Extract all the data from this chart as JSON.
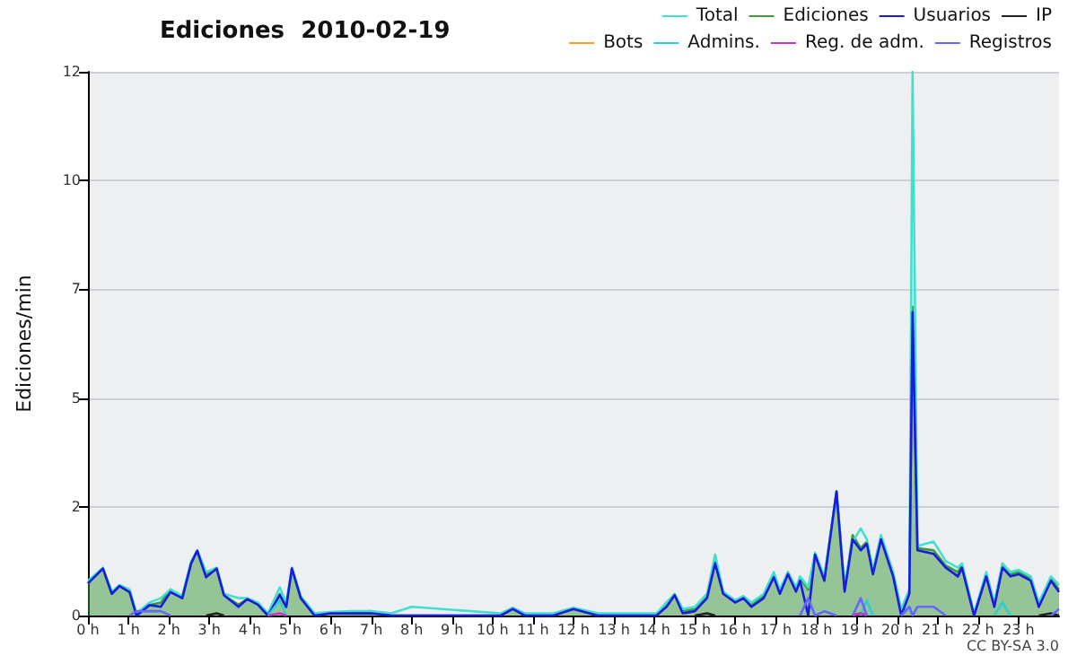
{
  "chart_data": {
    "type": "line",
    "title": "Ediciones  2010-02-19",
    "ylabel": "Ediciones/min",
    "annotations": [
      "CC BY-SA 3.0"
    ],
    "grid": "y",
    "legend": "top right",
    "marker": "none",
    "xlim": [
      0,
      24
    ],
    "xticks": [
      {
        "value": 0,
        "label": "0 h"
      },
      {
        "value": 1,
        "label": "1 h"
      },
      {
        "value": 2,
        "label": "2 h"
      },
      {
        "value": 3,
        "label": "3 h"
      },
      {
        "value": 4,
        "label": "4 h"
      },
      {
        "value": 5,
        "label": "5 h"
      },
      {
        "value": 6,
        "label": "6 h"
      },
      {
        "value": 7,
        "label": "7 h"
      },
      {
        "value": 8,
        "label": "8 h"
      },
      {
        "value": 9,
        "label": "9 h"
      },
      {
        "value": 10,
        "label": "10 h"
      },
      {
        "value": 11,
        "label": "11 h"
      },
      {
        "value": 12,
        "label": "12 h"
      },
      {
        "value": 13,
        "label": "13 h"
      },
      {
        "value": 14,
        "label": "14 h"
      },
      {
        "value": 15,
        "label": "15 h"
      },
      {
        "value": 16,
        "label": "16 h"
      },
      {
        "value": 17,
        "label": "17 h"
      },
      {
        "value": 18,
        "label": "18 h"
      },
      {
        "value": 19,
        "label": "19 h"
      },
      {
        "value": 20,
        "label": "20 h"
      },
      {
        "value": 21,
        "label": "21 h"
      },
      {
        "value": 22,
        "label": "22 h"
      },
      {
        "value": 23,
        "label": "23 h"
      }
    ],
    "ylim": [
      0,
      12.5
    ],
    "yticks": [
      0,
      {
        "value": 2.5,
        "label": "2"
      },
      {
        "value": 5,
        "label": "5"
      },
      {
        "value": 7.5,
        "label": "7"
      },
      {
        "value": 10,
        "label": "10"
      },
      {
        "value": 12.5,
        "label": "12"
      }
    ],
    "x": [
      0,
      0.37,
      0.59,
      0.78,
      1.03,
      1.2,
      1.52,
      1.8,
      2.04,
      2.33,
      2.55,
      2.7,
      2.92,
      3.18,
      3.36,
      3.72,
      3.94,
      4.2,
      4.45,
      4.74,
      4.9,
      5.04,
      5.26,
      5.6,
      6,
      6.5,
      7,
      7.5,
      8,
      10.2,
      10.5,
      10.8,
      11.5,
      12,
      12.6,
      13,
      14.05,
      14.3,
      14.5,
      14.7,
      15,
      15.3,
      15.5,
      15.7,
      16,
      16.2,
      16.4,
      16.7,
      16.95,
      17.1,
      17.3,
      17.5,
      17.6,
      17.8,
      17.97,
      18.2,
      18.5,
      18.7,
      18.9,
      19.1,
      19.25,
      19.4,
      19.6,
      19.9,
      20.1,
      20.3,
      20.38,
      20.5,
      20.9,
      21.2,
      21.5,
      21.6,
      21.9,
      22.2,
      22.4,
      22.6,
      22.8,
      23,
      23.3,
      23.5,
      23.8,
      24
    ],
    "series": [
      {
        "name": "Total",
        "color": "#40e0d0",
        "values": [
          0.8,
          1.1,
          0.55,
          0.7,
          0.6,
          0.05,
          0.3,
          0.4,
          0.6,
          0.45,
          1.25,
          1.5,
          1.0,
          1.1,
          0.5,
          0.4,
          0.4,
          0.3,
          0.05,
          0.65,
          0.3,
          1.1,
          0.45,
          0.05,
          0.08,
          0.1,
          0.1,
          0.05,
          0.2,
          0.05,
          0.18,
          0.05,
          0.05,
          0.18,
          0.05,
          0.05,
          0.05,
          0.3,
          0.5,
          0.15,
          0.2,
          0.5,
          1.4,
          0.55,
          0.35,
          0.45,
          0.3,
          0.5,
          1.0,
          0.6,
          1.0,
          0.65,
          0.9,
          0.65,
          1.45,
          0.9,
          2.85,
          0.7,
          1.7,
          2.0,
          1.75,
          1.05,
          1.85,
          1.0,
          0.15,
          0.6,
          12.5,
          1.6,
          1.7,
          1.25,
          1.1,
          1.2,
          0.05,
          1.0,
          0.3,
          1.2,
          1.0,
          1.05,
          0.9,
          0.3,
          0.9,
          0.7
        ]
      },
      {
        "name": "Ediciones",
        "type": "area",
        "color": "#3c9c3c",
        "values": [
          0.74,
          1.08,
          0.5,
          0.68,
          0.54,
          0,
          0.24,
          0.3,
          0.6,
          0.4,
          1.2,
          1.49,
          0.95,
          1.08,
          0.47,
          0.25,
          0.38,
          0.25,
          0,
          0.5,
          0.2,
          1.08,
          0.4,
          0,
          0.05,
          0.08,
          0.1,
          0,
          0,
          0,
          0.15,
          0,
          0,
          0.15,
          0,
          0,
          0,
          0.3,
          0.47,
          0.1,
          0.15,
          0.45,
          1.25,
          0.5,
          0.3,
          0.4,
          0.25,
          0.45,
          0.95,
          0.55,
          1.0,
          0.6,
          0.85,
          0.6,
          1.4,
          0.85,
          2.85,
          0.6,
          1.85,
          1.55,
          1.7,
          1.0,
          1.8,
          0.95,
          0.1,
          0.5,
          7.1,
          1.55,
          1.5,
          1.15,
          1.0,
          1.15,
          0,
          0.95,
          0.25,
          1.15,
          0.95,
          1.0,
          0.85,
          0.25,
          0.85,
          0.6
        ]
      },
      {
        "name": "Usuarios",
        "color": "#1a1ae0",
        "values": [
          0.74,
          1.08,
          0.5,
          0.68,
          0.54,
          0,
          0.24,
          0.2,
          0.54,
          0.4,
          1.2,
          1.49,
          0.88,
          1.08,
          0.47,
          0.2,
          0.38,
          0.25,
          0,
          0.47,
          0.2,
          1.08,
          0.4,
          0,
          0.05,
          0.05,
          0.05,
          0,
          0,
          0,
          0.15,
          0,
          0,
          0.15,
          0,
          0,
          0,
          0.2,
          0.47,
          0.05,
          0.1,
          0.4,
          1.2,
          0.5,
          0.3,
          0.4,
          0.2,
          0.4,
          0.88,
          0.5,
          0.95,
          0.55,
          0.8,
          0,
          1.4,
          0.8,
          2.85,
          0.55,
          1.75,
          1.5,
          1.65,
          0.95,
          1.75,
          0.9,
          0,
          0.5,
          6.97,
          1.5,
          1.42,
          1.1,
          0.9,
          1.1,
          0,
          0.9,
          0.2,
          1.1,
          0.9,
          0.95,
          0.8,
          0.2,
          0.8,
          0.54
        ]
      },
      {
        "name": "IP",
        "color": "#222222",
        "values": [
          null,
          null,
          null,
          null,
          null,
          null,
          null,
          null,
          null,
          null,
          null,
          null,
          0,
          0.05,
          0,
          null,
          null,
          null,
          null,
          null,
          null,
          null,
          null,
          null,
          null,
          null,
          null,
          null,
          null,
          null,
          null,
          null,
          null,
          null,
          null,
          null,
          null,
          null,
          null,
          null,
          0,
          0.05,
          0,
          null,
          null,
          null,
          null,
          null,
          null,
          null,
          null,
          null,
          null,
          null,
          null,
          null,
          null,
          null,
          0,
          0.05,
          0,
          null,
          null,
          null,
          null,
          null,
          null,
          null,
          null,
          null,
          null,
          null,
          null,
          null,
          null,
          null,
          null,
          null,
          null,
          0,
          0.05,
          0
        ]
      },
      {
        "name": "Bots",
        "color": "#ff9933",
        "values": [
          null,
          null,
          null,
          null,
          null,
          null,
          null,
          null,
          null,
          null,
          null,
          null,
          null,
          null,
          null,
          null,
          null,
          null,
          null,
          null,
          null,
          null,
          null,
          null,
          null,
          null,
          null,
          null,
          null,
          null,
          null,
          null,
          null,
          null,
          null,
          null,
          null,
          null,
          null,
          null,
          null,
          null,
          null,
          null,
          null,
          null,
          null,
          null,
          null,
          null,
          null,
          null,
          null,
          null,
          null,
          null,
          null,
          null,
          null,
          null,
          null,
          null,
          null,
          null,
          null,
          null,
          null,
          null,
          null,
          null,
          null,
          null,
          null,
          null,
          null,
          null,
          null,
          null,
          null,
          null,
          null,
          null
        ]
      },
      {
        "name": "Admins.",
        "color": "#33cccc",
        "values": [
          null,
          null,
          null,
          null,
          null,
          null,
          null,
          null,
          null,
          null,
          null,
          null,
          null,
          null,
          null,
          null,
          null,
          null,
          0,
          0.35,
          0,
          null,
          null,
          null,
          null,
          null,
          null,
          null,
          null,
          null,
          null,
          null,
          null,
          null,
          null,
          null,
          null,
          null,
          null,
          null,
          null,
          null,
          null,
          null,
          null,
          null,
          null,
          null,
          null,
          null,
          null,
          null,
          null,
          null,
          null,
          null,
          null,
          null,
          null,
          0,
          0.35,
          0,
          null,
          null,
          0,
          0.2,
          0,
          null,
          null,
          null,
          null,
          null,
          null,
          null,
          0,
          0.3,
          0,
          null,
          null,
          null,
          null,
          null
        ]
      },
      {
        "name": "Reg. de adm.",
        "color": "#cc33cc",
        "values": [
          null,
          null,
          null,
          null,
          null,
          null,
          null,
          null,
          null,
          null,
          null,
          null,
          null,
          null,
          null,
          null,
          null,
          null,
          0,
          0.05,
          0,
          null,
          null,
          null,
          null,
          null,
          null,
          null,
          null,
          null,
          null,
          null,
          null,
          null,
          null,
          null,
          null,
          null,
          null,
          null,
          null,
          null,
          null,
          null,
          null,
          null,
          null,
          null,
          null,
          null,
          null,
          null,
          null,
          null,
          null,
          null,
          null,
          null,
          0,
          0.05,
          0,
          null,
          null,
          null,
          null,
          null,
          null,
          null,
          null,
          null,
          null,
          null,
          null,
          null,
          null,
          null,
          null,
          null,
          null,
          null,
          null,
          null
        ]
      },
      {
        "name": "Registros",
        "color": "#6666ff",
        "values": [
          null,
          null,
          null,
          null,
          0,
          0.1,
          0.1,
          0.1,
          0,
          null,
          null,
          null,
          null,
          null,
          null,
          null,
          null,
          null,
          null,
          null,
          null,
          null,
          null,
          null,
          null,
          null,
          null,
          null,
          null,
          null,
          null,
          null,
          null,
          null,
          null,
          null,
          null,
          null,
          null,
          null,
          null,
          null,
          null,
          null,
          null,
          null,
          null,
          null,
          null,
          null,
          null,
          null,
          0,
          0.4,
          0,
          0.1,
          0,
          null,
          0,
          0.4,
          0,
          null,
          null,
          null,
          0,
          0.2,
          0,
          0.2,
          0.2,
          0,
          null,
          null,
          null,
          null,
          null,
          null,
          null,
          null,
          null,
          null,
          0,
          0.15
        ]
      }
    ]
  }
}
